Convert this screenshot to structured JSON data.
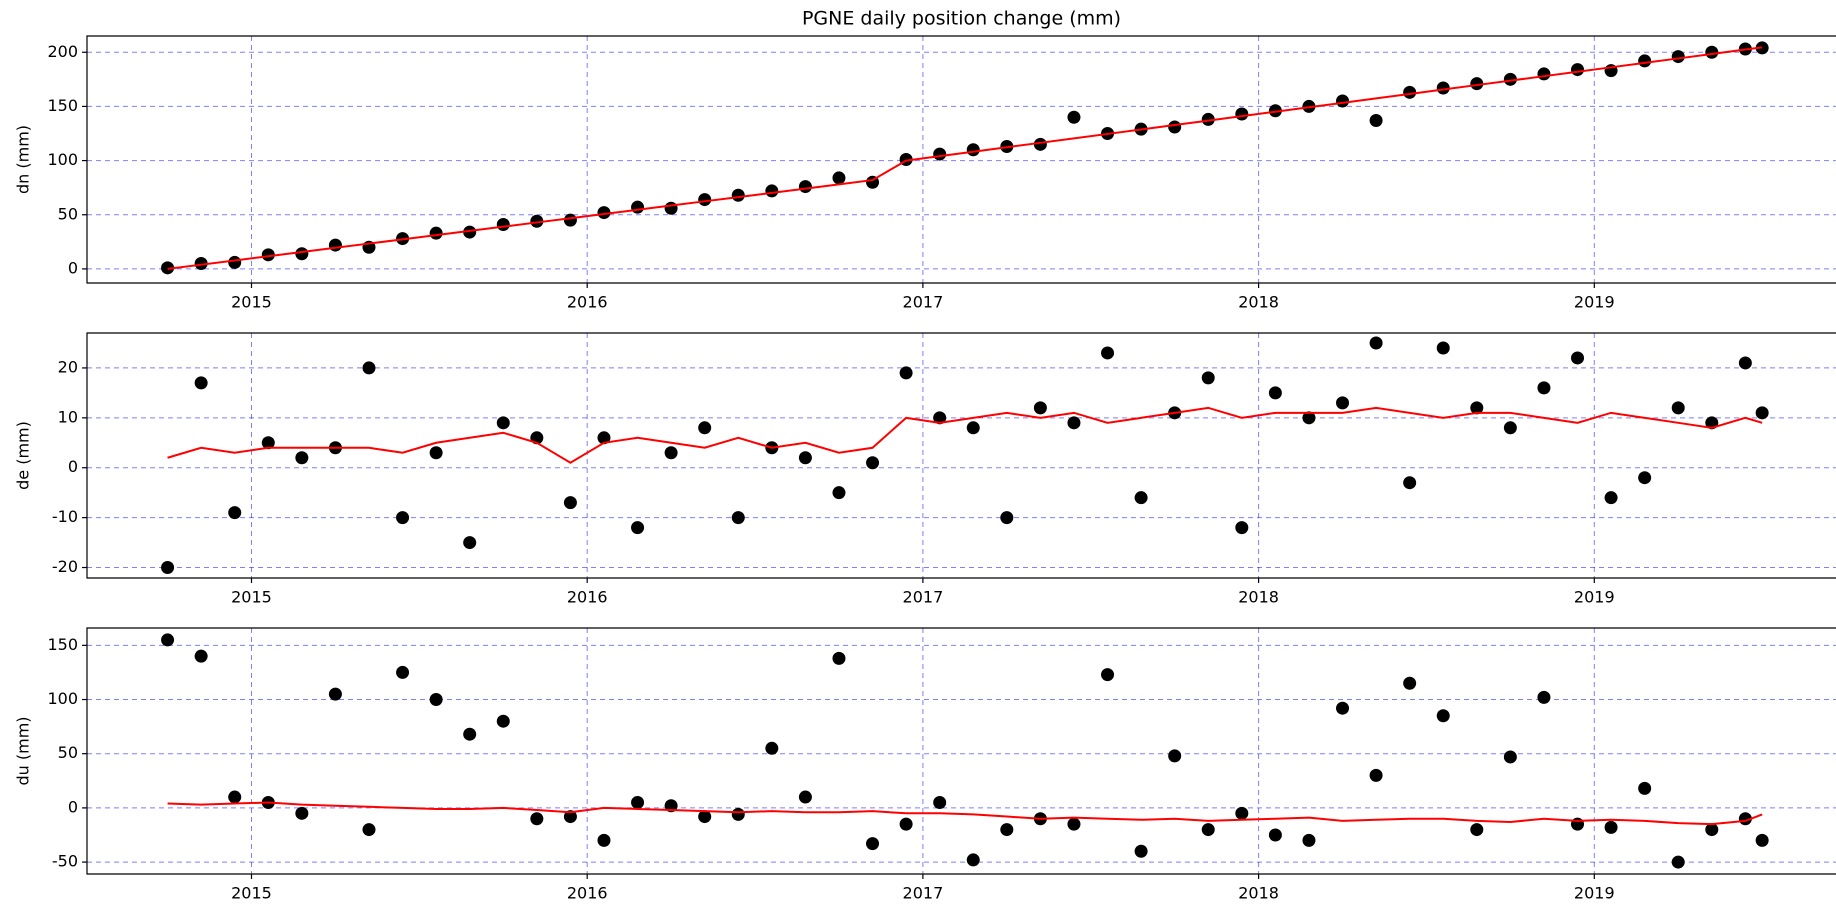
{
  "chart_data": [
    {
      "type": "scatter",
      "title": "PGNE daily position change (mm)",
      "y_label": "dn (mm)",
      "x": [
        2014.75,
        2014.85,
        2014.95,
        2015.05,
        2015.15,
        2015.25,
        2015.35,
        2015.45,
        2015.55,
        2015.65,
        2015.75,
        2015.85,
        2015.95,
        2016.05,
        2016.15,
        2016.25,
        2016.35,
        2016.45,
        2016.55,
        2016.65,
        2016.75,
        2016.85,
        2016.95,
        2017.05,
        2017.15,
        2017.25,
        2017.35,
        2017.45,
        2017.55,
        2017.65,
        2017.75,
        2017.85,
        2017.95,
        2018.05,
        2018.15,
        2018.25,
        2018.35,
        2018.45,
        2018.55,
        2018.65,
        2018.75,
        2018.85,
        2018.95,
        2019.05,
        2019.15,
        2019.25,
        2019.35,
        2019.45,
        2019.5
      ],
      "series": [
        {
          "type": "scatter",
          "color": "#000000",
          "values": [
            1,
            5,
            6,
            13,
            14,
            22,
            20,
            28,
            33,
            34,
            41,
            44,
            45,
            52,
            57,
            56,
            64,
            68,
            72,
            76,
            84,
            80,
            101,
            106,
            110,
            113,
            115,
            140,
            125,
            129,
            131,
            138,
            143,
            146,
            150,
            155,
            137,
            163,
            167,
            171,
            175,
            180,
            184,
            183,
            192,
            196,
            200,
            203,
            204
          ]
        },
        {
          "type": "line",
          "color": "#ff0000",
          "values": [
            0,
            3.9,
            7.8,
            11.7,
            15.6,
            19.5,
            23.4,
            27.3,
            31.2,
            35.1,
            39,
            42.9,
            46.8,
            50.7,
            54.6,
            58.5,
            62.4,
            66.3,
            70.2,
            74.1,
            78,
            82,
            100,
            104.1,
            108.2,
            112.3,
            116.4,
            120.5,
            124.6,
            128.7,
            132.8,
            136.9,
            141,
            145.1,
            149.2,
            153.3,
            157.4,
            161.5,
            165.6,
            169.7,
            173.8,
            177.9,
            182,
            186.1,
            190.2,
            194.3,
            198.4,
            202.5,
            204.5
          ]
        }
      ],
      "xlim": [
        2014.51,
        2019.72
      ],
      "xticks": [
        2015,
        2016,
        2017,
        2018,
        2019
      ],
      "ylim": [
        -13,
        215
      ],
      "yticks": [
        0,
        50,
        100,
        150,
        200
      ],
      "grid": true
    },
    {
      "type": "scatter",
      "y_label": "de (mm)",
      "x": [
        2014.75,
        2014.85,
        2014.95,
        2015.05,
        2015.15,
        2015.25,
        2015.35,
        2015.45,
        2015.55,
        2015.65,
        2015.75,
        2015.85,
        2015.95,
        2016.05,
        2016.15,
        2016.25,
        2016.35,
        2016.45,
        2016.55,
        2016.65,
        2016.75,
        2016.85,
        2016.95,
        2017.05,
        2017.15,
        2017.25,
        2017.35,
        2017.45,
        2017.55,
        2017.65,
        2017.75,
        2017.85,
        2017.95,
        2018.05,
        2018.15,
        2018.25,
        2018.35,
        2018.45,
        2018.55,
        2018.65,
        2018.75,
        2018.85,
        2018.95,
        2019.05,
        2019.15,
        2019.25,
        2019.35,
        2019.45,
        2019.5
      ],
      "series": [
        {
          "type": "scatter",
          "color": "#000000",
          "values": [
            -20,
            17,
            -9,
            5,
            2,
            4,
            20,
            -10,
            3,
            -15,
            9,
            6,
            -7,
            6,
            -12,
            3,
            8,
            -10,
            4,
            2,
            -5,
            1,
            19,
            10,
            8,
            -10,
            12,
            9,
            23,
            -6,
            11,
            18,
            -12,
            15,
            10,
            13,
            25,
            -3,
            24,
            12,
            8,
            16,
            22,
            -6,
            -2,
            12,
            9,
            21,
            11
          ]
        },
        {
          "type": "line",
          "color": "#ff0000",
          "values": [
            2,
            4,
            3,
            4,
            4,
            4,
            4,
            3,
            5,
            6,
            7,
            5,
            1,
            5,
            6,
            5,
            4,
            6,
            4,
            5,
            3,
            4,
            10,
            9,
            10,
            11,
            10,
            11,
            9,
            10,
            11,
            12,
            10,
            11,
            11,
            11,
            12,
            11,
            10,
            11,
            11,
            10,
            9,
            11,
            10,
            9,
            8,
            10,
            9
          ]
        }
      ],
      "xlim": [
        2014.51,
        2019.72
      ],
      "xticks": [
        2015,
        2016,
        2017,
        2018,
        2019
      ],
      "ylim": [
        -22.1,
        27
      ],
      "yticks": [
        -20,
        -10,
        0,
        10,
        20
      ],
      "grid": true
    },
    {
      "type": "scatter",
      "y_label": "du (mm)",
      "x": [
        2014.75,
        2014.85,
        2014.95,
        2015.05,
        2015.15,
        2015.25,
        2015.35,
        2015.45,
        2015.55,
        2015.65,
        2015.75,
        2015.85,
        2015.95,
        2016.05,
        2016.15,
        2016.25,
        2016.35,
        2016.45,
        2016.55,
        2016.65,
        2016.75,
        2016.85,
        2016.95,
        2017.05,
        2017.15,
        2017.25,
        2017.35,
        2017.45,
        2017.55,
        2017.65,
        2017.75,
        2017.85,
        2017.95,
        2018.05,
        2018.15,
        2018.25,
        2018.35,
        2018.45,
        2018.55,
        2018.65,
        2018.75,
        2018.85,
        2018.95,
        2019.05,
        2019.15,
        2019.25,
        2019.35,
        2019.45,
        2019.5
      ],
      "series": [
        {
          "type": "scatter",
          "color": "#000000",
          "values": [
            155,
            140,
            10,
            5,
            -5,
            105,
            -20,
            125,
            100,
            68,
            80,
            -10,
            -8,
            -30,
            5,
            2,
            -8,
            -6,
            55,
            10,
            138,
            -33,
            -15,
            5,
            -48,
            -20,
            -10,
            -15,
            123,
            -40,
            48,
            -20,
            -5,
            -25,
            -30,
            92,
            30,
            115,
            85,
            -20,
            47,
            102,
            -15,
            -18,
            18,
            -50,
            -20,
            -10,
            -30
          ]
        },
        {
          "type": "line",
          "color": "#ff0000",
          "values": [
            4,
            3,
            4,
            5,
            3,
            2,
            1,
            0,
            -1,
            -1,
            0,
            -2,
            -4,
            0,
            -1,
            -2,
            -3,
            -4,
            -3,
            -4,
            -4,
            -3,
            -5,
            -5,
            -6,
            -8,
            -10,
            -9,
            -10,
            -11,
            -10,
            -12,
            -11,
            -10,
            -9,
            -12,
            -11,
            -10,
            -10,
            -12,
            -13,
            -10,
            -12,
            -11,
            -12,
            -14,
            -15,
            -12,
            -6
          ]
        }
      ],
      "xlim": [
        2014.51,
        2019.72
      ],
      "xticks": [
        2015,
        2016,
        2017,
        2018,
        2019
      ],
      "ylim": [
        -61,
        166
      ],
      "yticks": [
        -50,
        0,
        50,
        100,
        150
      ],
      "grid": true
    }
  ]
}
